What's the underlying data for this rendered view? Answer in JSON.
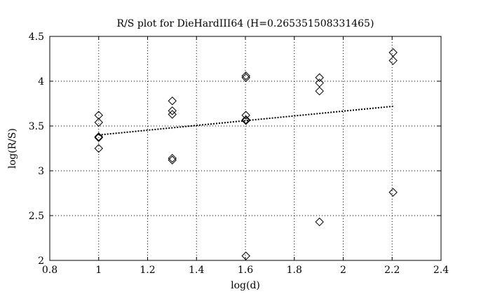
{
  "chart_data": {
    "type": "scatter",
    "title": "R/S plot for DieHardIII64 (H=0.265351508331465)",
    "xlabel": "log(d)",
    "ylabel": "log(R/S)",
    "xlim": [
      0.8,
      2.4
    ],
    "ylim": [
      2,
      4.5
    ],
    "xticks": [
      0.8,
      1,
      1.2,
      1.4,
      1.6,
      1.8,
      2,
      2.2,
      2.4
    ],
    "xtick_labels": [
      "0.8",
      "1",
      "1.2",
      "1.4",
      "1.6",
      "1.8",
      "2",
      "2.2",
      "2.4"
    ],
    "yticks": [
      2,
      2.5,
      3,
      3.5,
      4,
      4.5
    ],
    "ytick_labels": [
      "2",
      "2.5",
      "3",
      "3.5",
      "4",
      "4.5"
    ],
    "grid": true,
    "marker": "diamond",
    "points": [
      {
        "x": 1.0,
        "y": 3.62
      },
      {
        "x": 1.0,
        "y": 3.54
      },
      {
        "x": 1.0,
        "y": 3.38
      },
      {
        "x": 1.0,
        "y": 3.37
      },
      {
        "x": 1.0,
        "y": 3.25
      },
      {
        "x": 1.301,
        "y": 3.78
      },
      {
        "x": 1.301,
        "y": 3.67
      },
      {
        "x": 1.301,
        "y": 3.63
      },
      {
        "x": 1.301,
        "y": 3.14
      },
      {
        "x": 1.301,
        "y": 3.12
      },
      {
        "x": 1.602,
        "y": 4.06
      },
      {
        "x": 1.602,
        "y": 4.04
      },
      {
        "x": 1.602,
        "y": 3.62
      },
      {
        "x": 1.602,
        "y": 3.57
      },
      {
        "x": 1.602,
        "y": 3.56
      },
      {
        "x": 1.602,
        "y": 2.05
      },
      {
        "x": 1.903,
        "y": 4.04
      },
      {
        "x": 1.903,
        "y": 3.98
      },
      {
        "x": 1.903,
        "y": 3.89
      },
      {
        "x": 1.903,
        "y": 2.43
      },
      {
        "x": 2.204,
        "y": 4.32
      },
      {
        "x": 2.204,
        "y": 4.23
      },
      {
        "x": 2.204,
        "y": 2.76
      }
    ],
    "fit_line": {
      "x": [
        1.0,
        2.204
      ],
      "y": [
        3.4,
        3.72
      ],
      "style": "dotted"
    }
  }
}
